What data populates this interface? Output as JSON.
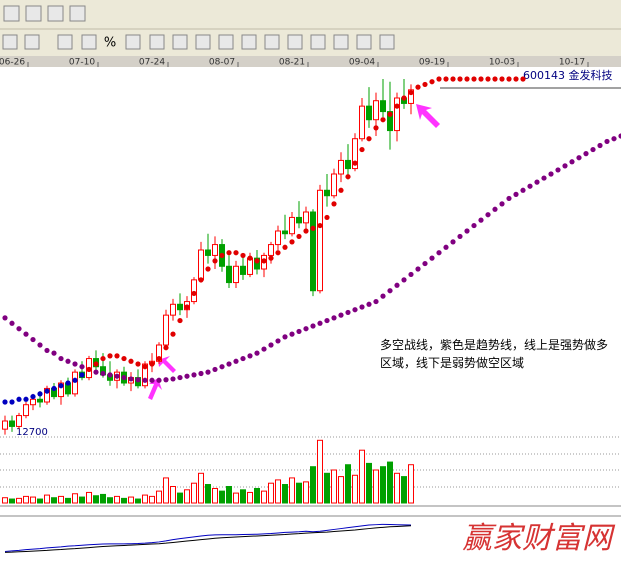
{
  "toolbar": {
    "percent": "%"
  },
  "chart_data": {
    "type": "candlestick",
    "stock_label": "600143 金发科技",
    "price_label": "12700",
    "annotation": "多空战线，紫色是趋势线，线上是强势做多区域，线下是弱势做空区域",
    "watermark": "赢家财富网",
    "xticks": [
      {
        "value": 1,
        "label": "06-26"
      },
      {
        "value": 11,
        "label": "07-10"
      },
      {
        "value": 21,
        "label": "07-24"
      },
      {
        "value": 31,
        "label": "08-07"
      },
      {
        "value": 41,
        "label": "08-21"
      },
      {
        "value": 51,
        "label": "09-04"
      },
      {
        "value": 61,
        "label": "09-19"
      },
      {
        "value": 71,
        "label": "10-03"
      },
      {
        "value": 81,
        "label": "10-17"
      }
    ],
    "ylim": [
      12,
      26
    ],
    "up_color": "#ff0000",
    "down_color": "#00a000",
    "open": [
      12.4,
      12.7,
      12.5,
      12.9,
      13.3,
      13.5,
      13.4,
      13.9,
      13.6,
      14.1,
      13.7,
      14.5,
      14.3,
      15.0,
      14.7,
      14.4,
      14.2,
      14.5,
      14.1,
      14.3,
      14.0,
      14.8,
      14.9,
      15.5,
      16.6,
      17.0,
      16.8,
      17.1,
      17.9,
      19.0,
      18.8,
      19.2,
      18.4,
      17.8,
      18.4,
      18.1,
      18.7,
      18.3,
      18.8,
      19.2,
      19.7,
      19.6,
      20.2,
      20.0,
      20.4,
      17.5,
      21.2,
      21.0,
      21.8,
      22.3,
      22.0,
      23.1,
      24.3,
      23.8,
      24.5,
      24.1,
      23.4,
      24.6,
      24.4
    ],
    "high": [
      12.9,
      12.9,
      13.0,
      13.4,
      13.7,
      13.8,
      14.0,
      14.1,
      14.2,
      14.3,
      14.6,
      14.9,
      15.1,
      15.3,
      15.2,
      14.9,
      14.6,
      14.7,
      14.5,
      14.6,
      14.9,
      15.2,
      15.6,
      16.8,
      17.2,
      17.4,
      17.3,
      18.0,
      19.3,
      19.6,
      19.5,
      19.4,
      18.8,
      18.6,
      18.8,
      18.9,
      19.0,
      18.9,
      19.3,
      19.9,
      20.3,
      20.4,
      20.8,
      20.6,
      20.5,
      21.4,
      21.8,
      22.0,
      22.6,
      22.9,
      23.3,
      24.6,
      25.0,
      24.8,
      25.3,
      25.2,
      24.8,
      25.3,
      25.1
    ],
    "low": [
      12.2,
      12.3,
      12.4,
      12.8,
      13.1,
      13.2,
      13.3,
      13.5,
      13.3,
      13.6,
      13.6,
      14.2,
      14.2,
      14.5,
      14.3,
      14.0,
      13.9,
      14.0,
      13.8,
      13.9,
      13.9,
      14.5,
      14.8,
      15.4,
      16.4,
      16.6,
      16.5,
      17.0,
      17.8,
      18.5,
      18.3,
      18.2,
      17.6,
      17.6,
      17.9,
      18.0,
      18.1,
      18.0,
      18.5,
      19.0,
      19.4,
      19.5,
      19.8,
      19.7,
      17.3,
      17.4,
      20.6,
      20.9,
      21.5,
      21.6,
      21.9,
      23.0,
      23.5,
      23.2,
      23.9,
      22.7,
      23.0,
      24.2,
      24.0
    ],
    "close": [
      12.7,
      12.5,
      12.9,
      13.3,
      13.5,
      13.4,
      13.9,
      13.6,
      14.1,
      13.7,
      14.5,
      14.3,
      15.0,
      14.7,
      14.4,
      14.2,
      14.5,
      14.1,
      14.3,
      14.0,
      14.8,
      14.9,
      15.5,
      16.6,
      17.0,
      16.8,
      17.1,
      17.9,
      19.0,
      18.8,
      19.2,
      18.4,
      17.8,
      18.4,
      18.1,
      18.7,
      18.3,
      18.8,
      19.2,
      19.7,
      19.6,
      20.2,
      20.0,
      20.4,
      17.5,
      21.2,
      21.0,
      21.8,
      22.3,
      22.0,
      23.1,
      24.3,
      23.8,
      24.5,
      24.1,
      23.4,
      24.6,
      24.4,
      24.9
    ],
    "trend_line": {
      "color": "#800080",
      "values": [
        16.5,
        16.3,
        16.1,
        15.9,
        15.7,
        15.5,
        15.3,
        15.2,
        15.0,
        14.9,
        14.8,
        14.7,
        14.6,
        14.5,
        14.45,
        14.4,
        14.35,
        14.3,
        14.25,
        14.22,
        14.2,
        14.2,
        14.2,
        14.22,
        14.25,
        14.3,
        14.35,
        14.4,
        14.45,
        14.5,
        14.6,
        14.7,
        14.8,
        14.9,
        15.0,
        15.1,
        15.2,
        15.35,
        15.5,
        15.65,
        15.8,
        15.9,
        16.0,
        16.1,
        16.2,
        16.3,
        16.4,
        16.5,
        16.6,
        16.7,
        16.8,
        16.9,
        17.0,
        17.1,
        17.3,
        17.5,
        17.7,
        17.9,
        18.1,
        18.3,
        18.5,
        18.7,
        18.9,
        19.1,
        19.3,
        19.5,
        19.7,
        19.9,
        20.1,
        20.3,
        20.5,
        20.7,
        20.9,
        21.05,
        21.2,
        21.35,
        21.5,
        21.65,
        21.8,
        21.95,
        22.1,
        22.25,
        22.4,
        22.55,
        22.7,
        22.85,
        23.0,
        23.1,
        23.2
      ]
    },
    "short_line": {
      "color_above": "#e00000",
      "color_below": "#0000c0",
      "values": [
        13.4,
        13.4,
        13.5,
        13.5,
        13.6,
        13.7,
        13.8,
        13.9,
        14.0,
        14.1,
        14.2,
        14.4,
        14.6,
        14.8,
        15.0,
        15.1,
        15.1,
        15.0,
        14.9,
        14.8,
        14.7,
        14.8,
        15.0,
        15.4,
        15.9,
        16.4,
        16.9,
        17.4,
        17.9,
        18.3,
        18.6,
        18.8,
        18.9,
        18.9,
        18.8,
        18.7,
        18.6,
        18.6,
        18.7,
        18.9,
        19.1,
        19.3,
        19.5,
        19.7,
        19.8,
        19.9,
        20.2,
        20.7,
        21.2,
        21.7,
        22.2,
        22.7,
        23.1,
        23.5,
        23.8,
        24.0,
        24.3,
        24.6,
        24.8,
        25.0,
        25.1,
        25.2,
        25.3,
        25.3,
        25.3,
        25.3,
        25.3,
        25.3,
        25.3,
        25.3,
        25.3,
        25.3,
        25.3,
        25.3,
        25.3
      ]
    },
    "volume": {
      "ylim": [
        0,
        100
      ],
      "values": [
        8,
        6,
        7,
        10,
        9,
        6,
        12,
        8,
        10,
        7,
        14,
        9,
        16,
        11,
        13,
        8,
        10,
        7,
        9,
        6,
        12,
        10,
        18,
        38,
        25,
        15,
        20,
        30,
        45,
        28,
        22,
        18,
        25,
        15,
        20,
        16,
        22,
        18,
        30,
        35,
        28,
        38,
        30,
        32,
        55,
        95,
        45,
        50,
        40,
        58,
        42,
        80,
        60,
        50,
        55,
        62,
        45,
        40,
        58
      ]
    },
    "macd": {
      "ylim": [
        -1,
        1.5
      ],
      "series": [
        {
          "color": "#0000c0",
          "values": [
            -0.4,
            -0.37,
            -0.34,
            -0.3,
            -0.27,
            -0.24,
            -0.2,
            -0.17,
            -0.14,
            -0.1,
            -0.08,
            -0.05,
            -0.02,
            0,
            0.02,
            0.03,
            0.03,
            0.03,
            0.04,
            0.05,
            0.07,
            0.1,
            0.14,
            0.2,
            0.27,
            0.33,
            0.38,
            0.43,
            0.48,
            0.52,
            0.54,
            0.55,
            0.55,
            0.55,
            0.56,
            0.57,
            0.58,
            0.6,
            0.62,
            0.65,
            0.68,
            0.7,
            0.72,
            0.75,
            0.72,
            0.75,
            0.8,
            0.85,
            0.9,
            0.95,
            1.0,
            1.05,
            1.1,
            1.12,
            1.14,
            1.13,
            1.12,
            1.11,
            1.1
          ]
        },
        {
          "color": "#000000",
          "values": [
            -0.45,
            -0.44,
            -0.42,
            -0.4,
            -0.38,
            -0.36,
            -0.34,
            -0.31,
            -0.29,
            -0.26,
            -0.24,
            -0.21,
            -0.18,
            -0.15,
            -0.12,
            -0.1,
            -0.08,
            -0.06,
            -0.04,
            -0.02,
            0,
            0.02,
            0.04,
            0.07,
            0.11,
            0.15,
            0.19,
            0.23,
            0.27,
            0.31,
            0.35,
            0.38,
            0.4,
            0.42,
            0.44,
            0.46,
            0.48,
            0.5,
            0.52,
            0.54,
            0.56,
            0.59,
            0.61,
            0.64,
            0.66,
            0.68,
            0.7,
            0.73,
            0.76,
            0.79,
            0.82,
            0.86,
            0.9,
            0.94,
            0.97,
            1.0,
            1.02,
            1.04,
            1.06
          ]
        }
      ]
    }
  }
}
